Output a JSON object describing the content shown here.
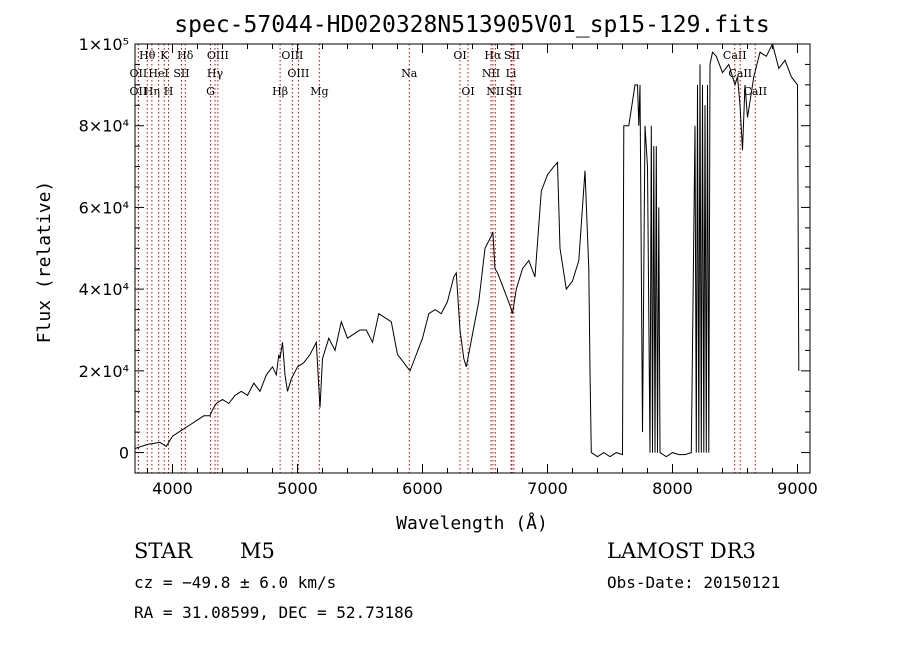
{
  "chart_data": {
    "type": "line",
    "title": "spec-57044-HD020328N513905V01_sp15-129.fits",
    "xlabel": "Wavelength (Å)",
    "ylabel": "Flux (relative)",
    "xlim": [
      3700,
      9100
    ],
    "ylim": [
      -5000,
      100000
    ],
    "xticks": [
      4000,
      5000,
      6000,
      7000,
      8000,
      9000
    ],
    "xtick_labels": [
      "4000",
      "5000",
      "6000",
      "7000",
      "8000",
      "9000"
    ],
    "yticks": [
      0,
      20000,
      40000,
      60000,
      80000,
      100000
    ],
    "ytick_labels": [
      "0",
      "2×10⁴",
      "4×10⁴",
      "6×10⁴",
      "8×10⁴",
      "1×10⁵"
    ],
    "series": [
      {
        "name": "flux",
        "x": [
          3700,
          3800,
          3900,
          3950,
          4000,
          4050,
          4100,
          4150,
          4200,
          4250,
          4300,
          4320,
          4350,
          4400,
          4450,
          4500,
          4550,
          4600,
          4650,
          4700,
          4750,
          4800,
          4830,
          4850,
          4860,
          4880,
          4900,
          4920,
          4950,
          5000,
          5050,
          5100,
          5150,
          5180,
          5200,
          5250,
          5300,
          5350,
          5400,
          5450,
          5500,
          5550,
          5600,
          5650,
          5700,
          5750,
          5800,
          5850,
          5900,
          5950,
          6000,
          6050,
          6100,
          6150,
          6200,
          6250,
          6270,
          6300,
          6330,
          6350,
          6400,
          6450,
          6500,
          6550,
          6563,
          6580,
          6600,
          6650,
          6700,
          6720,
          6750,
          6800,
          6850,
          6900,
          6950,
          7000,
          7050,
          7080,
          7100,
          7150,
          7200,
          7250,
          7300,
          7330,
          7340,
          7350,
          7400,
          7450,
          7500,
          7550,
          7600,
          7610,
          7650,
          7700,
          7720,
          7730,
          7740,
          7760,
          7780,
          7800,
          7820,
          7830,
          7840,
          7850,
          7860,
          7870,
          7880,
          7890,
          7900,
          7950,
          8000,
          8050,
          8100,
          8150,
          8180,
          8190,
          8200,
          8210,
          8220,
          8230,
          8240,
          8250,
          8260,
          8270,
          8280,
          8290,
          8300,
          8320,
          8350,
          8400,
          8450,
          8500,
          8520,
          8540,
          8560,
          8580,
          8600,
          8650,
          8700,
          8750,
          8800,
          8850,
          8900,
          8950,
          9000,
          9010
        ],
        "y": [
          1000,
          2000,
          2500,
          1500,
          4000,
          5000,
          6000,
          7000,
          8000,
          9000,
          9000,
          10500,
          12000,
          13000,
          12000,
          14000,
          15000,
          14000,
          17000,
          15000,
          19000,
          21000,
          19000,
          24000,
          23000,
          27000,
          19000,
          15000,
          18000,
          21000,
          22000,
          24000,
          27000,
          11000,
          23000,
          28000,
          25000,
          32000,
          28000,
          29000,
          30000,
          30000,
          27000,
          34000,
          33000,
          32000,
          24000,
          22000,
          20000,
          24000,
          28000,
          34000,
          35000,
          34000,
          37000,
          43000,
          44000,
          30000,
          23000,
          21000,
          29000,
          37000,
          50000,
          53000,
          54000,
          45000,
          44000,
          40000,
          36000,
          34000,
          40000,
          45000,
          47000,
          43000,
          64000,
          68000,
          70000,
          71000,
          50000,
          40000,
          42000,
          47000,
          69000,
          45000,
          20000,
          0,
          -1000,
          0,
          -1000,
          0,
          -500,
          80000,
          80000,
          90000,
          90000,
          80000,
          90000,
          5000,
          80000,
          70000,
          0,
          80000,
          0,
          75000,
          0,
          75000,
          0,
          60000,
          0,
          -1000,
          0,
          -500,
          -500,
          0,
          80000,
          0,
          90000,
          0,
          95000,
          0,
          90000,
          0,
          85000,
          0,
          90000,
          0,
          95000,
          98000,
          97000,
          93000,
          95000,
          90000,
          92000,
          85000,
          74000,
          90000,
          82000,
          92000,
          98000,
          97000,
          100000,
          94000,
          96000,
          92000,
          90000,
          20000
        ]
      }
    ],
    "lines": [
      {
        "name": "Hθ",
        "wl": 3798,
        "row": 0
      },
      {
        "name": "OII",
        "wl": 3727,
        "row": 1
      },
      {
        "name": "OII",
        "wl": 3727,
        "row": 2
      },
      {
        "name": "K",
        "wl": 3934,
        "row": 0
      },
      {
        "name": "HeI",
        "wl": 3889,
        "row": 1
      },
      {
        "name": "Hη",
        "wl": 3835,
        "row": 2
      },
      {
        "name": "Hδ",
        "wl": 4102,
        "row": 0
      },
      {
        "name": "SII",
        "wl": 4072,
        "row": 1
      },
      {
        "name": "H",
        "wl": 3968,
        "row": 2
      },
      {
        "name": "OIII",
        "wl": 4363,
        "row": 0
      },
      {
        "name": "Hγ",
        "wl": 4340,
        "row": 1
      },
      {
        "name": "G",
        "wl": 4304,
        "row": 2
      },
      {
        "name": "Hβ",
        "wl": 4861,
        "row": 2
      },
      {
        "name": "OIII",
        "wl": 4959,
        "row": 0
      },
      {
        "name": "OIII",
        "wl": 5007,
        "row": 1
      },
      {
        "name": "Mg",
        "wl": 5175,
        "row": 2
      },
      {
        "name": "Na",
        "wl": 5894,
        "row": 1
      },
      {
        "name": "OI",
        "wl": 6300,
        "row": 0
      },
      {
        "name": "OI",
        "wl": 6364,
        "row": 2
      },
      {
        "name": "Hα",
        "wl": 6563,
        "row": 0
      },
      {
        "name": "SII",
        "wl": 6716,
        "row": 0
      },
      {
        "name": "NII",
        "wl": 6548,
        "row": 1
      },
      {
        "name": "Li",
        "wl": 6708,
        "row": 1
      },
      {
        "name": "NII",
        "wl": 6583,
        "row": 2
      },
      {
        "name": "SII",
        "wl": 6731,
        "row": 2
      },
      {
        "name": "CaII",
        "wl": 8498,
        "row": 0
      },
      {
        "name": "CaII",
        "wl": 8542,
        "row": 1
      },
      {
        "name": "CaII",
        "wl": 8662,
        "row": 2
      }
    ],
    "line_color": "#aa1111",
    "grid": false,
    "legend": "none"
  },
  "footer": {
    "object_class": "STAR",
    "subclass": "M5",
    "survey": "LAMOST DR3",
    "cz": "cz = −49.8 ± 6.0 km/s",
    "obs_date": "Obs-Date: 20150121",
    "coords": "RA =  31.08599, DEC =  52.73186"
  }
}
